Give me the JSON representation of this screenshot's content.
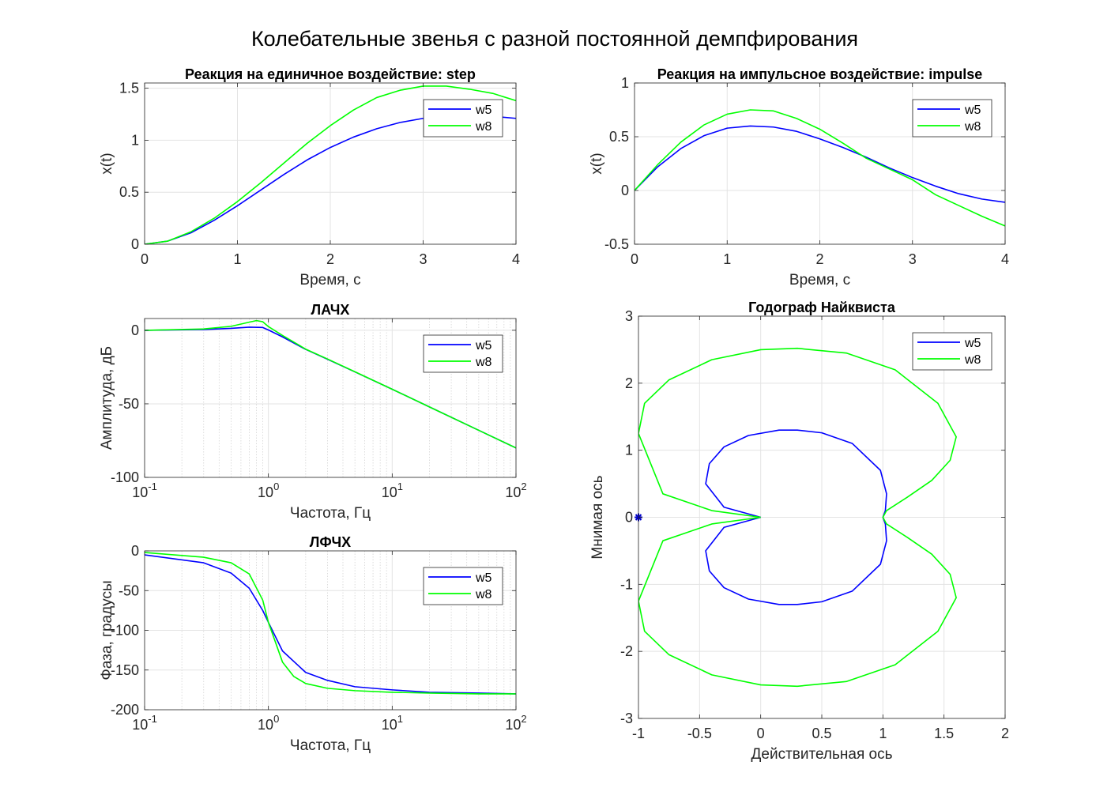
{
  "figure": {
    "suptitle": "Колебательные звенья с разной постоянной демпфирования"
  },
  "chart_data": [
    {
      "id": "step",
      "type": "line",
      "title": "Реакция на единичное воздействие: step",
      "xlabel": "Время, с",
      "ylabel": "x(t)",
      "xlim": [
        0,
        4
      ],
      "ylim": [
        0,
        1.55
      ],
      "xticks": [
        0,
        1,
        2,
        3,
        4
      ],
      "yticks": [
        0,
        0.5,
        1,
        1.5
      ],
      "grid": true,
      "legend_position": "top-right",
      "series": [
        {
          "name": "w5",
          "color": "#0000ff",
          "x": [
            0,
            0.25,
            0.5,
            0.75,
            1.0,
            1.25,
            1.5,
            1.75,
            2.0,
            2.25,
            2.5,
            2.75,
            3.0,
            3.25,
            3.5,
            3.75,
            4.0
          ],
          "y": [
            0,
            0.03,
            0.11,
            0.23,
            0.37,
            0.52,
            0.67,
            0.81,
            0.93,
            1.03,
            1.11,
            1.17,
            1.21,
            1.23,
            1.24,
            1.23,
            1.21
          ]
        },
        {
          "name": "w8",
          "color": "#00ff00",
          "x": [
            0,
            0.25,
            0.5,
            0.75,
            1.0,
            1.25,
            1.5,
            1.75,
            2.0,
            2.25,
            2.5,
            2.75,
            3.0,
            3.25,
            3.5,
            3.75,
            4.0
          ],
          "y": [
            0,
            0.03,
            0.12,
            0.25,
            0.41,
            0.59,
            0.78,
            0.97,
            1.14,
            1.29,
            1.41,
            1.48,
            1.52,
            1.52,
            1.49,
            1.45,
            1.38
          ]
        }
      ]
    },
    {
      "id": "impulse",
      "type": "line",
      "title": "Реакция на импульсное воздействие: impulse",
      "xlabel": "Время, с",
      "ylabel": "x(t)",
      "xlim": [
        0,
        4
      ],
      "ylim": [
        -0.5,
        1
      ],
      "xticks": [
        0,
        1,
        2,
        3,
        4
      ],
      "yticks": [
        -0.5,
        0,
        0.5,
        1
      ],
      "grid": true,
      "legend_position": "top-right",
      "series": [
        {
          "name": "w5",
          "color": "#0000ff",
          "x": [
            0,
            0.25,
            0.5,
            0.75,
            1.0,
            1.25,
            1.5,
            1.75,
            2.0,
            2.25,
            2.5,
            2.75,
            3.0,
            3.25,
            3.5,
            3.75,
            4.0
          ],
          "y": [
            0,
            0.22,
            0.39,
            0.51,
            0.58,
            0.6,
            0.59,
            0.55,
            0.48,
            0.4,
            0.31,
            0.21,
            0.12,
            0.04,
            -0.03,
            -0.08,
            -0.11
          ]
        },
        {
          "name": "w8",
          "color": "#00ff00",
          "x": [
            0,
            0.25,
            0.5,
            0.75,
            1.0,
            1.25,
            1.5,
            1.75,
            2.0,
            2.25,
            2.5,
            2.75,
            3.0,
            3.25,
            3.5,
            3.75,
            4.0
          ],
          "y": [
            0,
            0.24,
            0.45,
            0.61,
            0.71,
            0.75,
            0.74,
            0.67,
            0.57,
            0.44,
            0.3,
            0.2,
            0.1,
            -0.04,
            -0.14,
            -0.24,
            -0.33
          ]
        }
      ]
    },
    {
      "id": "lachx",
      "type": "line",
      "title": "ЛАЧХ",
      "xlabel": "Частота, Гц",
      "ylabel": "Амплитуда, дБ",
      "xscale": "log",
      "xlim": [
        0.1,
        100
      ],
      "ylim": [
        -100,
        8
      ],
      "xticks": [
        0.1,
        1,
        10,
        100
      ],
      "xtick_labels": [
        [
          "10",
          "-1"
        ],
        [
          "10",
          "0"
        ],
        [
          "10",
          "1"
        ],
        [
          "10",
          "2"
        ]
      ],
      "yticks": [
        -100,
        -50,
        0
      ],
      "grid": true,
      "legend_position": "top-right",
      "series": [
        {
          "name": "w5",
          "color": "#0000ff",
          "x": [
            0.1,
            0.3,
            0.5,
            0.7,
            0.9,
            1.0,
            1.3,
            2.0,
            3.0,
            5.0,
            10,
            20,
            50,
            100
          ],
          "y": [
            0,
            0.5,
            1.3,
            2.1,
            1.9,
            0.2,
            -4.5,
            -13,
            -19.7,
            -28.3,
            -40.1,
            -52.1,
            -68,
            -80
          ]
        },
        {
          "name": "w8",
          "color": "#00ff00",
          "x": [
            0.1,
            0.3,
            0.5,
            0.7,
            0.8,
            0.9,
            1.0,
            1.3,
            2.0,
            3.0,
            5.0,
            10,
            20,
            50,
            100
          ],
          "y": [
            0,
            0.9,
            2.7,
            5.5,
            6.6,
            5.8,
            2.5,
            -3.5,
            -12.8,
            -19.5,
            -28.2,
            -40.1,
            -52.1,
            -68,
            -80
          ]
        }
      ]
    },
    {
      "id": "lfchx",
      "type": "line",
      "title": "ЛФЧХ",
      "xlabel": "Частота, Гц",
      "ylabel": "Фаза, градусы",
      "xscale": "log",
      "xlim": [
        0.1,
        100
      ],
      "ylim": [
        -200,
        0
      ],
      "xticks": [
        0.1,
        1,
        10,
        100
      ],
      "xtick_labels": [
        [
          "10",
          "-1"
        ],
        [
          "10",
          "0"
        ],
        [
          "10",
          "1"
        ],
        [
          "10",
          "2"
        ]
      ],
      "yticks": [
        -200,
        -150,
        -100,
        -50,
        0
      ],
      "grid": true,
      "legend_position": "top-right",
      "series": [
        {
          "name": "w5",
          "color": "#0000ff",
          "x": [
            0.1,
            0.3,
            0.5,
            0.7,
            0.9,
            1.0,
            1.3,
            2.0,
            3.0,
            5.0,
            10,
            20,
            50,
            100
          ],
          "y": [
            -5,
            -15,
            -28,
            -47,
            -75,
            -90,
            -126,
            -153,
            -163,
            -171,
            -175,
            -178,
            -179,
            -180
          ]
        },
        {
          "name": "w8",
          "color": "#00ff00",
          "x": [
            0.1,
            0.3,
            0.5,
            0.7,
            0.9,
            1.0,
            1.3,
            1.6,
            2.0,
            3.0,
            5.0,
            10,
            20,
            50,
            100
          ],
          "y": [
            -2,
            -8,
            -15,
            -29,
            -62,
            -90,
            -140,
            -158,
            -167,
            -173,
            -176,
            -178,
            -179,
            -180,
            -180
          ]
        }
      ]
    },
    {
      "id": "nyquist",
      "type": "line",
      "title": "Годограф Найквиста",
      "xlabel": "Действительная ось",
      "ylabel": "Мнимая ось",
      "xlim": [
        -1,
        2
      ],
      "ylim": [
        -3,
        3
      ],
      "xticks": [
        -1,
        -0.5,
        0,
        0.5,
        1,
        1.5,
        2
      ],
      "yticks": [
        -3,
        -2,
        -1,
        0,
        1,
        2,
        3
      ],
      "grid": true,
      "legend_position": "top-right",
      "critical_point": {
        "x": -1,
        "y": 0,
        "marker": "*",
        "color": "#0000cc"
      },
      "series": [
        {
          "name": "w5",
          "color": "#0000ff",
          "x": [
            0,
            -0.3,
            -0.45,
            -0.42,
            -0.3,
            -0.1,
            0.15,
            0.3,
            0.5,
            0.75,
            0.98,
            1.03,
            1.02,
            1.0
          ],
          "y": [
            0,
            0.15,
            0.5,
            0.8,
            1.05,
            1.22,
            1.3,
            1.3,
            1.26,
            1.1,
            0.7,
            0.35,
            0.1,
            0
          ]
        },
        {
          "name": "w8",
          "color": "#00ff00",
          "x": [
            0,
            -0.4,
            -0.8,
            -1.0,
            -0.95,
            -0.75,
            -0.4,
            0,
            0.3,
            0.7,
            1.1,
            1.45,
            1.6,
            1.55,
            1.4,
            1.2,
            1.03,
            1.0
          ],
          "y": [
            0,
            0.1,
            0.35,
            1.25,
            1.7,
            2.05,
            2.35,
            2.5,
            2.52,
            2.45,
            2.2,
            1.7,
            1.2,
            0.85,
            0.55,
            0.3,
            0.1,
            0
          ]
        }
      ]
    }
  ]
}
